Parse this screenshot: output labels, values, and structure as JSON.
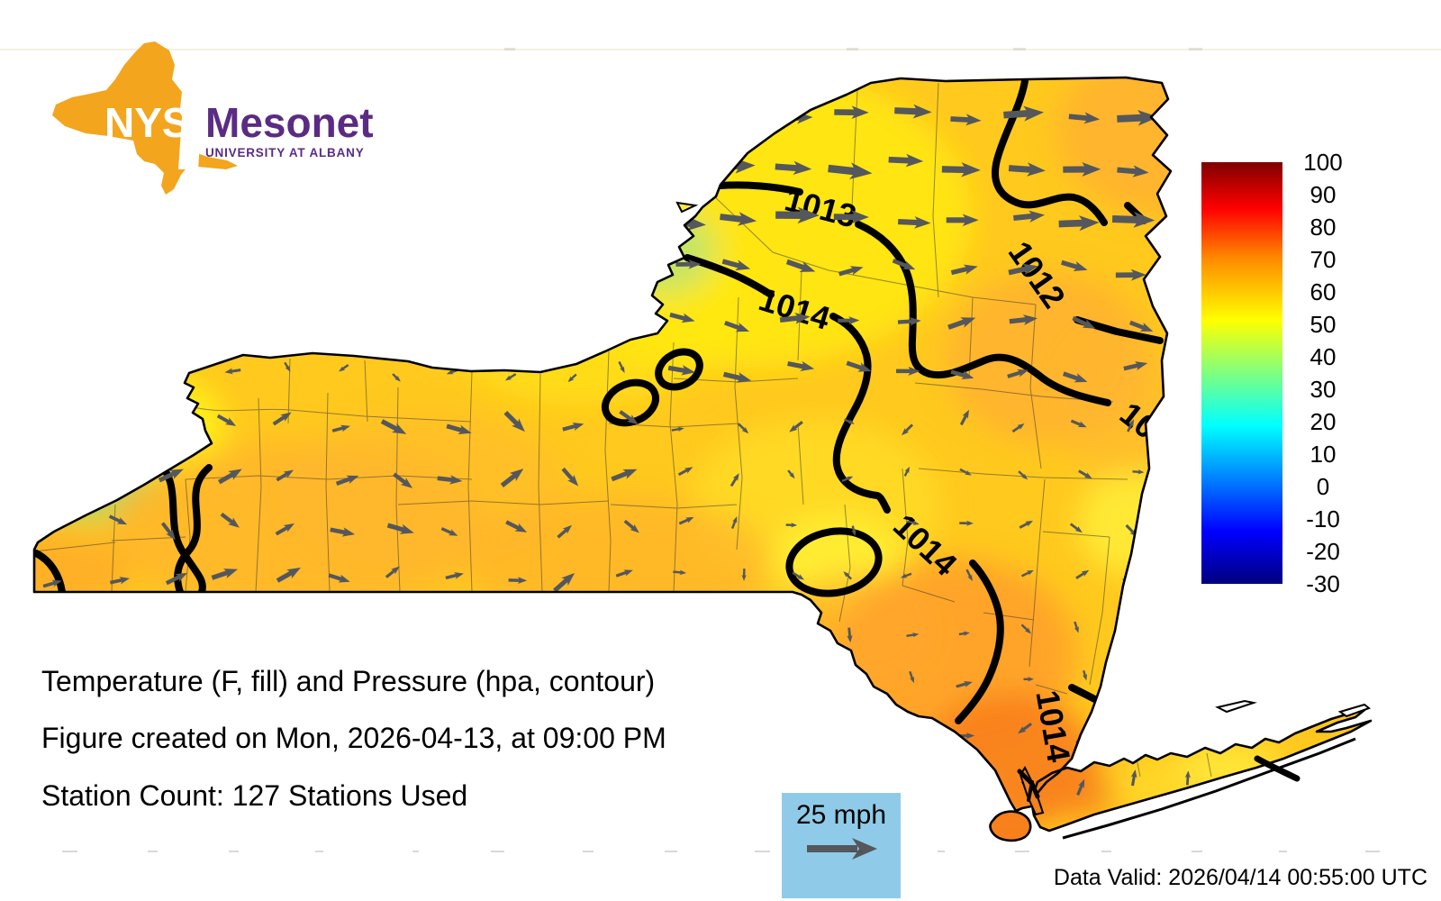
{
  "logo": {
    "acronym": "NYS",
    "name": "Mesonet",
    "affiliation": "UNIVERSITY AT ALBANY"
  },
  "colors": {
    "logo_orange": "#F3A51E",
    "logo_purple": "#5B2B84",
    "legend_blue": "#8FCBE8",
    "arrow_gray": "#54575C",
    "contour_black": "#000000"
  },
  "map": {
    "contour_labels": {
      "north": "1013",
      "west": "1014",
      "northeast": "1012",
      "south": "1014",
      "southeast_vertical": "1014",
      "east_partial": "10"
    }
  },
  "colorbar": {
    "max": 100,
    "min": -30,
    "ticks": [
      "100",
      "90",
      "80",
      "70",
      "60",
      "50",
      "40",
      "30",
      "20",
      "10",
      "0",
      "-10",
      "-20",
      "-30"
    ]
  },
  "caption": {
    "line1": "Temperature (F, fill) and Pressure (hpa, contour)",
    "line2": "Figure created on Mon, 2026-04-13, at 09:00 PM",
    "line3": "Station Count: 127 Stations Used"
  },
  "wind_legend": {
    "label": "25 mph"
  },
  "footer": {
    "data_valid": "Data Valid: 2026/04/14 00:55:00 UTC"
  }
}
